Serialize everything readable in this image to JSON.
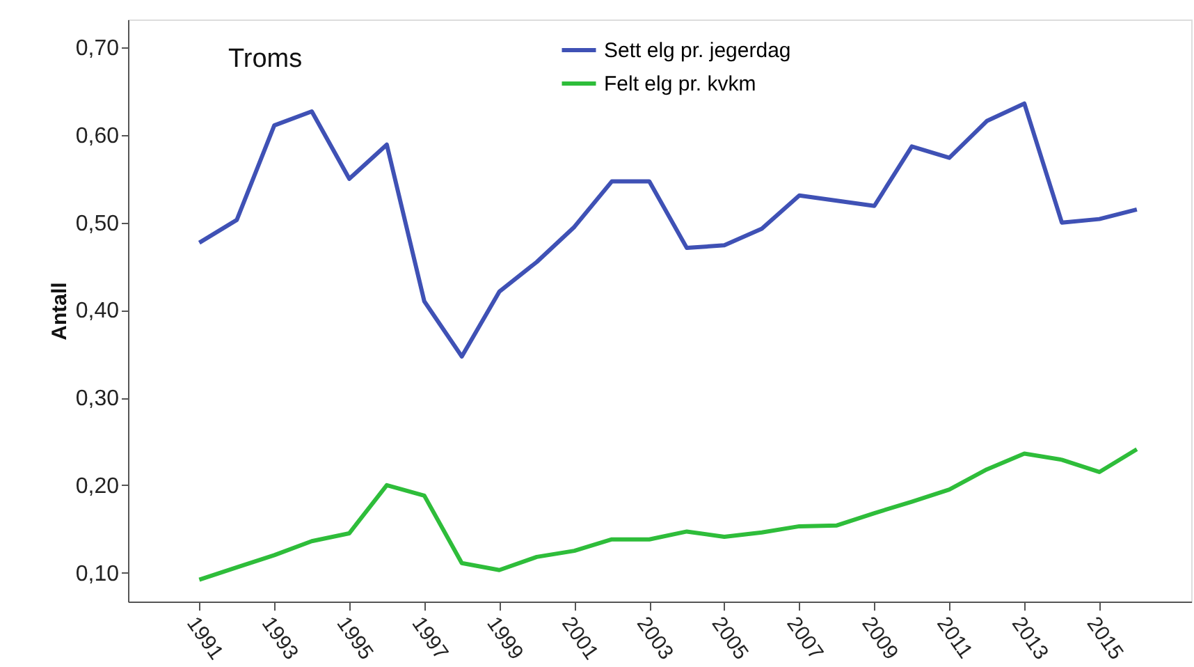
{
  "chart_data": {
    "type": "line",
    "ylabel": "Antall",
    "annotations": [
      "Troms"
    ],
    "legend": "top",
    "x": [
      1991,
      1992,
      1993,
      1994,
      1995,
      1996,
      1997,
      1998,
      1999,
      2000,
      2001,
      2002,
      2003,
      2004,
      2005,
      2006,
      2007,
      2008,
      2009,
      2010,
      2011,
      2012,
      2013,
      2014,
      2015,
      2016
    ],
    "series": [
      {
        "name": "Sett elg pr. jegerdag",
        "color": "#3f51b5",
        "values": [
          0.477,
          0.503,
          0.611,
          0.627,
          0.55,
          0.589,
          0.41,
          0.347,
          0.421,
          0.455,
          0.495,
          0.547,
          0.547,
          0.471,
          0.474,
          0.493,
          0.531,
          0.525,
          0.519,
          0.587,
          0.574,
          0.616,
          0.636,
          0.5,
          0.504,
          0.515
        ]
      },
      {
        "name": "Felt elg pr. kvkm",
        "color": "#2ebd3a",
        "values": [
          0.092,
          0.106,
          0.12,
          0.136,
          0.145,
          0.2,
          0.188,
          0.111,
          0.103,
          0.118,
          0.125,
          0.138,
          0.138,
          0.147,
          0.141,
          0.146,
          0.153,
          0.154,
          0.168,
          0.181,
          0.195,
          0.218,
          0.236,
          0.229,
          0.215,
          0.241
        ]
      }
    ],
    "xlim": [
      1989.1,
      2017.45
    ],
    "xticks": [
      1991,
      1993,
      1995,
      1997,
      1999,
      2001,
      2003,
      2005,
      2007,
      2009,
      2011,
      2013,
      2015
    ],
    "ylim": [
      0.067,
      0.732
    ],
    "yticks": [
      {
        "value": 0.1,
        "label": "0,10"
      },
      {
        "value": 0.2,
        "label": "0,20"
      },
      {
        "value": 0.3,
        "label": "0,30"
      },
      {
        "value": 0.4,
        "label": "0,40"
      },
      {
        "value": 0.5,
        "label": "0,50"
      },
      {
        "value": 0.6,
        "label": "0,60"
      },
      {
        "value": 0.7,
        "label": "0,70"
      }
    ],
    "grid": false,
    "marker": "none",
    "line_style": "solid"
  }
}
